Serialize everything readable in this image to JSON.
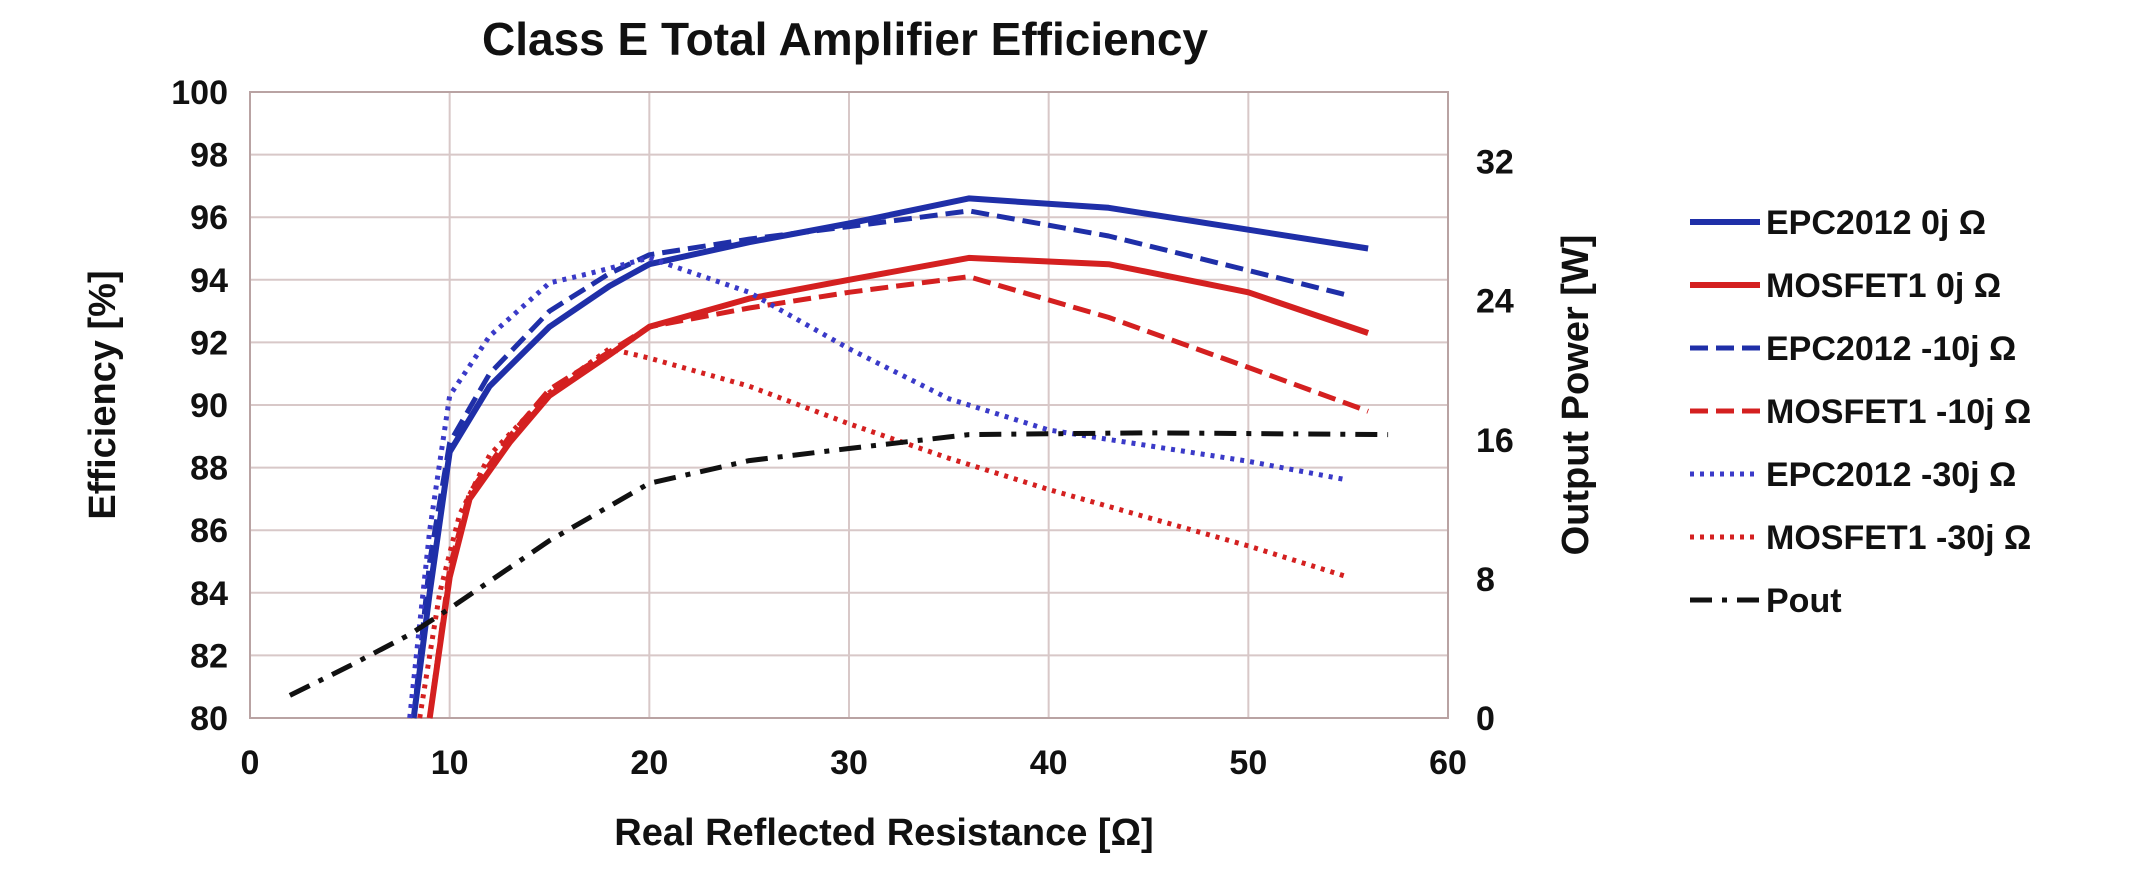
{
  "chart_data": {
    "type": "line",
    "title": "Class E Total Amplifier Efficiency",
    "xlabel": "Real Reflected Resistance [Ω]",
    "ylabel": "Efficiency [%]",
    "y2label": "Output Power [W]",
    "xlim": [
      0,
      60
    ],
    "ylim": [
      80,
      100
    ],
    "y2lim": [
      0,
      36
    ],
    "xticks": [
      "0",
      "10",
      "20",
      "30",
      "40",
      "50",
      "60"
    ],
    "yticks": [
      "80",
      "82",
      "84",
      "86",
      "88",
      "90",
      "92",
      "94",
      "96",
      "98",
      "100"
    ],
    "y2ticks": [
      "0",
      "8",
      "16",
      "24",
      "32"
    ],
    "grid": true,
    "legend_position": "right",
    "series": [
      {
        "name": "EPC2012 0j Ω",
        "color": "#1f2fa8",
        "dash": "solid",
        "axis": "left",
        "x": [
          8.2,
          9,
          10,
          12,
          15,
          18,
          20,
          25,
          30,
          36,
          43,
          50,
          56
        ],
        "y": [
          80.0,
          84.0,
          88.5,
          90.6,
          92.5,
          93.8,
          94.5,
          95.2,
          95.8,
          96.6,
          96.3,
          95.6,
          95.0
        ]
      },
      {
        "name": "MOSFET1 0j Ω",
        "color": "#d42020",
        "dash": "solid",
        "axis": "left",
        "x": [
          9,
          10,
          11,
          13,
          15,
          18,
          20,
          25,
          30,
          36,
          43,
          50,
          56
        ],
        "y": [
          80.0,
          84.5,
          87.0,
          88.8,
          90.3,
          91.6,
          92.5,
          93.4,
          94.0,
          94.7,
          94.5,
          93.6,
          92.3
        ]
      },
      {
        "name": "EPC2012 -10j Ω",
        "color": "#1f2fa8",
        "dash": "18,8",
        "axis": "left",
        "x": [
          8.2,
          9,
          10,
          12,
          15,
          18,
          20,
          25,
          30,
          36,
          43,
          50,
          55
        ],
        "y": [
          80.0,
          85.0,
          88.8,
          91.0,
          93.0,
          94.2,
          94.8,
          95.3,
          95.7,
          96.2,
          95.4,
          94.3,
          93.5
        ]
      },
      {
        "name": "MOSFET1 -10j Ω",
        "color": "#d42020",
        "dash": "18,8",
        "axis": "left",
        "x": [
          9,
          10,
          11,
          13,
          15,
          18,
          20,
          25,
          30,
          36,
          43,
          50,
          56
        ],
        "y": [
          80.0,
          84.8,
          87.2,
          89.0,
          90.5,
          91.7,
          92.5,
          93.1,
          93.6,
          94.1,
          92.8,
          91.2,
          89.8
        ]
      },
      {
        "name": "EPC2012 -30j Ω",
        "color": "#3a3ac8",
        "dash": "4,6",
        "axis": "left",
        "x": [
          8,
          9,
          10,
          12,
          15,
          17,
          20,
          25,
          30,
          35,
          40,
          45,
          50,
          55
        ],
        "y": [
          80.0,
          86.0,
          90.3,
          92.2,
          93.9,
          94.2,
          94.7,
          93.6,
          91.8,
          90.2,
          89.2,
          88.7,
          88.2,
          87.6
        ]
      },
      {
        "name": "MOSFET1 -30j Ω",
        "color": "#d42020",
        "dash": "4,6",
        "axis": "left",
        "x": [
          8.5,
          9.5,
          10.5,
          12,
          15,
          18,
          20,
          25,
          30,
          35,
          40,
          45,
          50,
          55
        ],
        "y": [
          80.0,
          84.0,
          86.5,
          88.4,
          90.4,
          91.8,
          91.5,
          90.6,
          89.4,
          88.3,
          87.3,
          86.4,
          85.5,
          84.5
        ]
      },
      {
        "name": "Pout",
        "color": "#111111",
        "dash": "22,10,5,10",
        "axis": "right",
        "x": [
          2,
          5,
          8,
          10,
          15,
          20,
          25,
          30,
          36,
          45,
          57
        ],
        "y": [
          1.3,
          3.0,
          4.8,
          6.3,
          10.2,
          13.5,
          14.8,
          15.5,
          16.3,
          16.4,
          16.3
        ]
      }
    ]
  }
}
